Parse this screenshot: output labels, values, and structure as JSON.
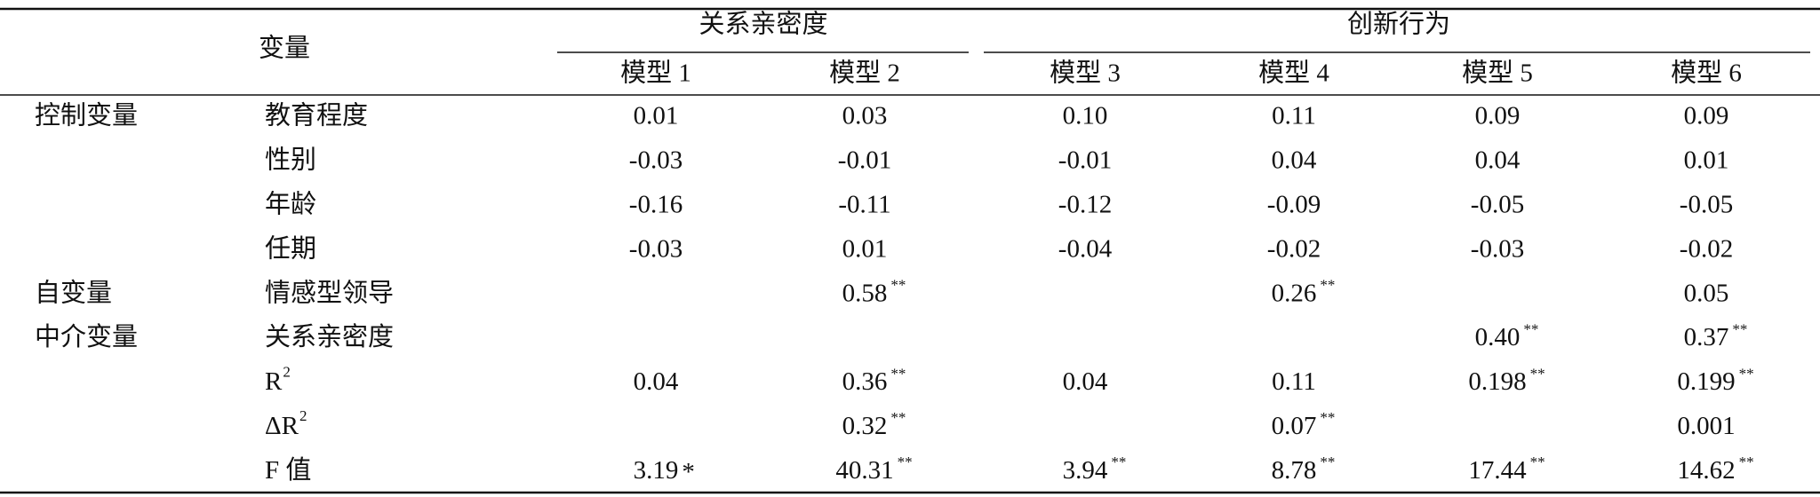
{
  "header": {
    "variable": "变量",
    "groups": [
      {
        "label": "关系亲密度"
      },
      {
        "label": "创新行为"
      }
    ],
    "models": [
      "模型 1",
      "模型 2",
      "模型 3",
      "模型 4",
      "模型 5",
      "模型 6"
    ]
  },
  "rows": [
    {
      "group": "控制变量",
      "label": {
        "text": "教育程度"
      },
      "cells": [
        {
          "value": "0.01"
        },
        {
          "value": "0.03"
        },
        {
          "value": "0.10"
        },
        {
          "value": "0.11"
        },
        {
          "value": "0.09"
        },
        {
          "value": "0.09"
        }
      ]
    },
    {
      "group": null,
      "label": {
        "text": "性别"
      },
      "cells": [
        {
          "value": "-0.03"
        },
        {
          "value": "-0.01"
        },
        {
          "value": "-0.01"
        },
        {
          "value": "0.04"
        },
        {
          "value": "0.04"
        },
        {
          "value": "0.01"
        }
      ]
    },
    {
      "group": null,
      "label": {
        "text": "年龄"
      },
      "cells": [
        {
          "value": "-0.16"
        },
        {
          "value": "-0.11"
        },
        {
          "value": "-0.12"
        },
        {
          "value": "-0.09"
        },
        {
          "value": "-0.05"
        },
        {
          "value": "-0.05"
        }
      ]
    },
    {
      "group": null,
      "label": {
        "text": "任期"
      },
      "cells": [
        {
          "value": "-0.03"
        },
        {
          "value": "0.01"
        },
        {
          "value": "-0.04"
        },
        {
          "value": "-0.02"
        },
        {
          "value": "-0.03"
        },
        {
          "value": "-0.02"
        }
      ]
    },
    {
      "group": "自变量",
      "label": {
        "text": "情感型领导"
      },
      "cells": [
        null,
        {
          "value": "0.58",
          "sig": "**"
        },
        null,
        {
          "value": "0.26",
          "sig": "**"
        },
        null,
        {
          "value": "0.05"
        }
      ]
    },
    {
      "group": "中介变量",
      "label": {
        "text": "关系亲密度"
      },
      "cells": [
        null,
        null,
        null,
        null,
        {
          "value": "0.40",
          "sig": "**"
        },
        {
          "value": "0.37",
          "sig": "**"
        }
      ]
    },
    {
      "group": null,
      "label": {
        "text": "R",
        "sup": "2"
      },
      "cells": [
        {
          "value": "0.04"
        },
        {
          "value": "0.36",
          "sig": "**"
        },
        {
          "value": "0.04"
        },
        {
          "value": "0.11"
        },
        {
          "value": "0.198",
          "sig": "**"
        },
        {
          "value": "0.199",
          "sig": "**"
        }
      ]
    },
    {
      "group": null,
      "label": {
        "text": "ΔR",
        "sup": "2"
      },
      "cells": [
        null,
        {
          "value": "0.32",
          "sig": "**"
        },
        null,
        {
          "value": "0.07",
          "sig": "**"
        },
        null,
        {
          "value": "0.001"
        }
      ]
    },
    {
      "group": null,
      "label": {
        "text": "F 值"
      },
      "cells": [
        {
          "value": "3.19",
          "sig": "*"
        },
        {
          "value": "40.31",
          "sig": "**"
        },
        {
          "value": "3.94",
          "sig": "**"
        },
        {
          "value": "8.78",
          "sig": "**"
        },
        {
          "value": "17.44",
          "sig": "**"
        },
        {
          "value": "14.62",
          "sig": "**"
        }
      ]
    }
  ]
}
